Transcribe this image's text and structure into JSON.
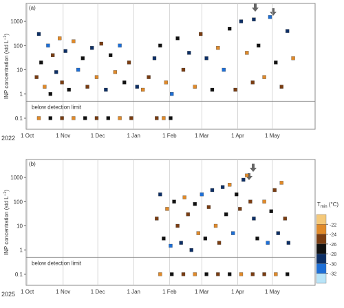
{
  "chart_data": [
    {
      "type": "scatter",
      "title": "(a)",
      "year_label": "2022",
      "ylabel": "INP concentration (std L",
      "ylabel_sup": "−1",
      "ylabel_end": ")",
      "log_y": true,
      "ylim": [
        0.035,
        5500
      ],
      "yticks": [
        0.1,
        1,
        10,
        100,
        1000
      ],
      "xlim": [
        -1,
        249
      ],
      "xticks": [
        {
          "value": 0,
          "label": "1 Oct"
        },
        {
          "value": 31,
          "label": "1 Nov"
        },
        {
          "value": 61,
          "label": "1 Dec"
        },
        {
          "value": 92,
          "label": "1 Jan"
        },
        {
          "value": 123,
          "label": "1 Feb"
        },
        {
          "value": 151,
          "label": "1 Mar"
        },
        {
          "value": 182,
          "label": "1 Apr"
        },
        {
          "value": 212,
          "label": "1 May"
        }
      ],
      "grid": true,
      "detection_limit": 0.5,
      "detection_label": "below detection limit",
      "x": [
        8,
        10,
        12,
        15,
        18,
        20,
        22,
        25,
        28,
        30,
        33,
        36,
        40,
        44,
        48,
        52,
        56,
        60,
        64,
        68,
        72,
        76,
        80,
        84,
        88,
        95,
        100,
        105,
        110,
        115,
        120,
        125,
        130,
        135,
        140,
        145,
        150,
        155,
        160,
        165,
        170,
        175,
        180,
        185,
        190,
        195,
        196,
        200,
        205,
        210,
        215,
        220,
        225,
        230,
        10,
        20,
        30,
        40,
        50,
        60,
        70,
        80,
        90,
        112,
        118,
        124
      ],
      "values": [
        5,
        300,
        20,
        2,
        100,
        1,
        40,
        8,
        200,
        3,
        60,
        1.5,
        150,
        10,
        30,
        2,
        80,
        5,
        120,
        1.5,
        40,
        8,
        100,
        3,
        20,
        2,
        1.5,
        5,
        30,
        100,
        3,
        1,
        200,
        10,
        50,
        2,
        300,
        30,
        1.5,
        80,
        10,
        500,
        1.5,
        1000,
        50,
        3,
        1200,
        100,
        5,
        1500,
        20,
        2,
        400,
        30,
        0.1,
        0.1,
        0.1,
        0.1,
        0.1,
        0.1,
        0.1,
        0.1,
        0.1,
        0.1,
        0.1,
        0.1
      ],
      "tmin": [
        -24,
        -29,
        -26,
        -22,
        -31,
        -27,
        -25,
        -28,
        -23,
        -24,
        -29,
        -26,
        -22,
        -31,
        -27,
        -25,
        -28,
        -23,
        -24,
        -29,
        -26,
        -22,
        -31,
        -27,
        -25,
        -28,
        -23,
        -24,
        -29,
        -26,
        -22,
        -31,
        -27,
        -25,
        -28,
        -23,
        -24,
        -29,
        -26,
        -22,
        -31,
        -27,
        -25,
        -28,
        -23,
        -24,
        -29,
        -26,
        -22,
        -31,
        -27,
        -25,
        -28,
        -23,
        -23,
        -27,
        -25,
        -22,
        -26,
        -24,
        -27,
        -23,
        -25,
        -24,
        -22,
        -26
      ]
    },
    {
      "type": "scatter",
      "title": "(b)",
      "year_label": "2025",
      "ylabel": "INP concentration (std L",
      "ylabel_sup": "−1",
      "ylabel_end": ")",
      "log_y": true,
      "ylim": [
        0.035,
        5500
      ],
      "yticks": [
        0.1,
        1,
        10,
        100,
        1000
      ],
      "xlim": [
        -1,
        249
      ],
      "xticks": [
        {
          "value": 0,
          "label": "1 Oct"
        },
        {
          "value": 31,
          "label": "1 Nov"
        },
        {
          "value": 61,
          "label": "1 Dec"
        },
        {
          "value": 92,
          "label": "1 Jan"
        },
        {
          "value": 123,
          "label": "1 Feb"
        },
        {
          "value": 151,
          "label": "1 Mar"
        },
        {
          "value": 182,
          "label": "1 Apr"
        },
        {
          "value": 212,
          "label": "1 May"
        }
      ],
      "grid": true,
      "detection_limit": 0.5,
      "detection_label": "below detection limit",
      "x": [
        112,
        115,
        118,
        121,
        124,
        127,
        130,
        133,
        136,
        139,
        142,
        145,
        148,
        151,
        154,
        157,
        160,
        163,
        166,
        169,
        172,
        175,
        178,
        181,
        184,
        187,
        190,
        193,
        196,
        199,
        205,
        208,
        211,
        214,
        217,
        220,
        223,
        226,
        115,
        125,
        135,
        145,
        155,
        165,
        175,
        185,
        195,
        205,
        215,
        225
      ],
      "values": [
        20,
        200,
        3,
        50,
        1.5,
        100,
        10,
        2,
        150,
        30,
        1,
        80,
        5,
        200,
        3,
        60,
        300,
        10,
        2,
        400,
        30,
        500,
        5,
        200,
        50,
        800,
        1200,
        100,
        20,
        3,
        100,
        2,
        40,
        300,
        5,
        600,
        20,
        2,
        0.1,
        0.1,
        0.1,
        0.1,
        0.1,
        0.1,
        0.1,
        0.1,
        0.1,
        0.1,
        0.1,
        0.1
      ],
      "tmin": [
        -24,
        -29,
        -26,
        -22,
        -31,
        -27,
        -25,
        -28,
        -23,
        -24,
        -29,
        -26,
        -22,
        -31,
        -27,
        -25,
        -28,
        -23,
        -24,
        -29,
        -26,
        -22,
        -31,
        -27,
        -25,
        -28,
        -23,
        -24,
        -29,
        -26,
        -22,
        -31,
        -27,
        -25,
        -28,
        -23,
        -24,
        -29,
        -23,
        -27,
        -25,
        -22,
        -26,
        -24,
        -27,
        -23,
        -25,
        -24,
        -22,
        -26
      ]
    },
    {
      "type": "colorbar",
      "label": "T",
      "label_sub": "min",
      "label_unit": " (°C)",
      "clim": [
        -20,
        -34
      ],
      "colors": [
        "#f5c97a",
        "#e08a2a",
        "#7a3d12",
        "#111111",
        "#0d2f66",
        "#1e6fd6",
        "#b8e4f8"
      ],
      "ticks": [
        -22,
        -24,
        -26,
        -28,
        -30,
        -32
      ]
    }
  ]
}
